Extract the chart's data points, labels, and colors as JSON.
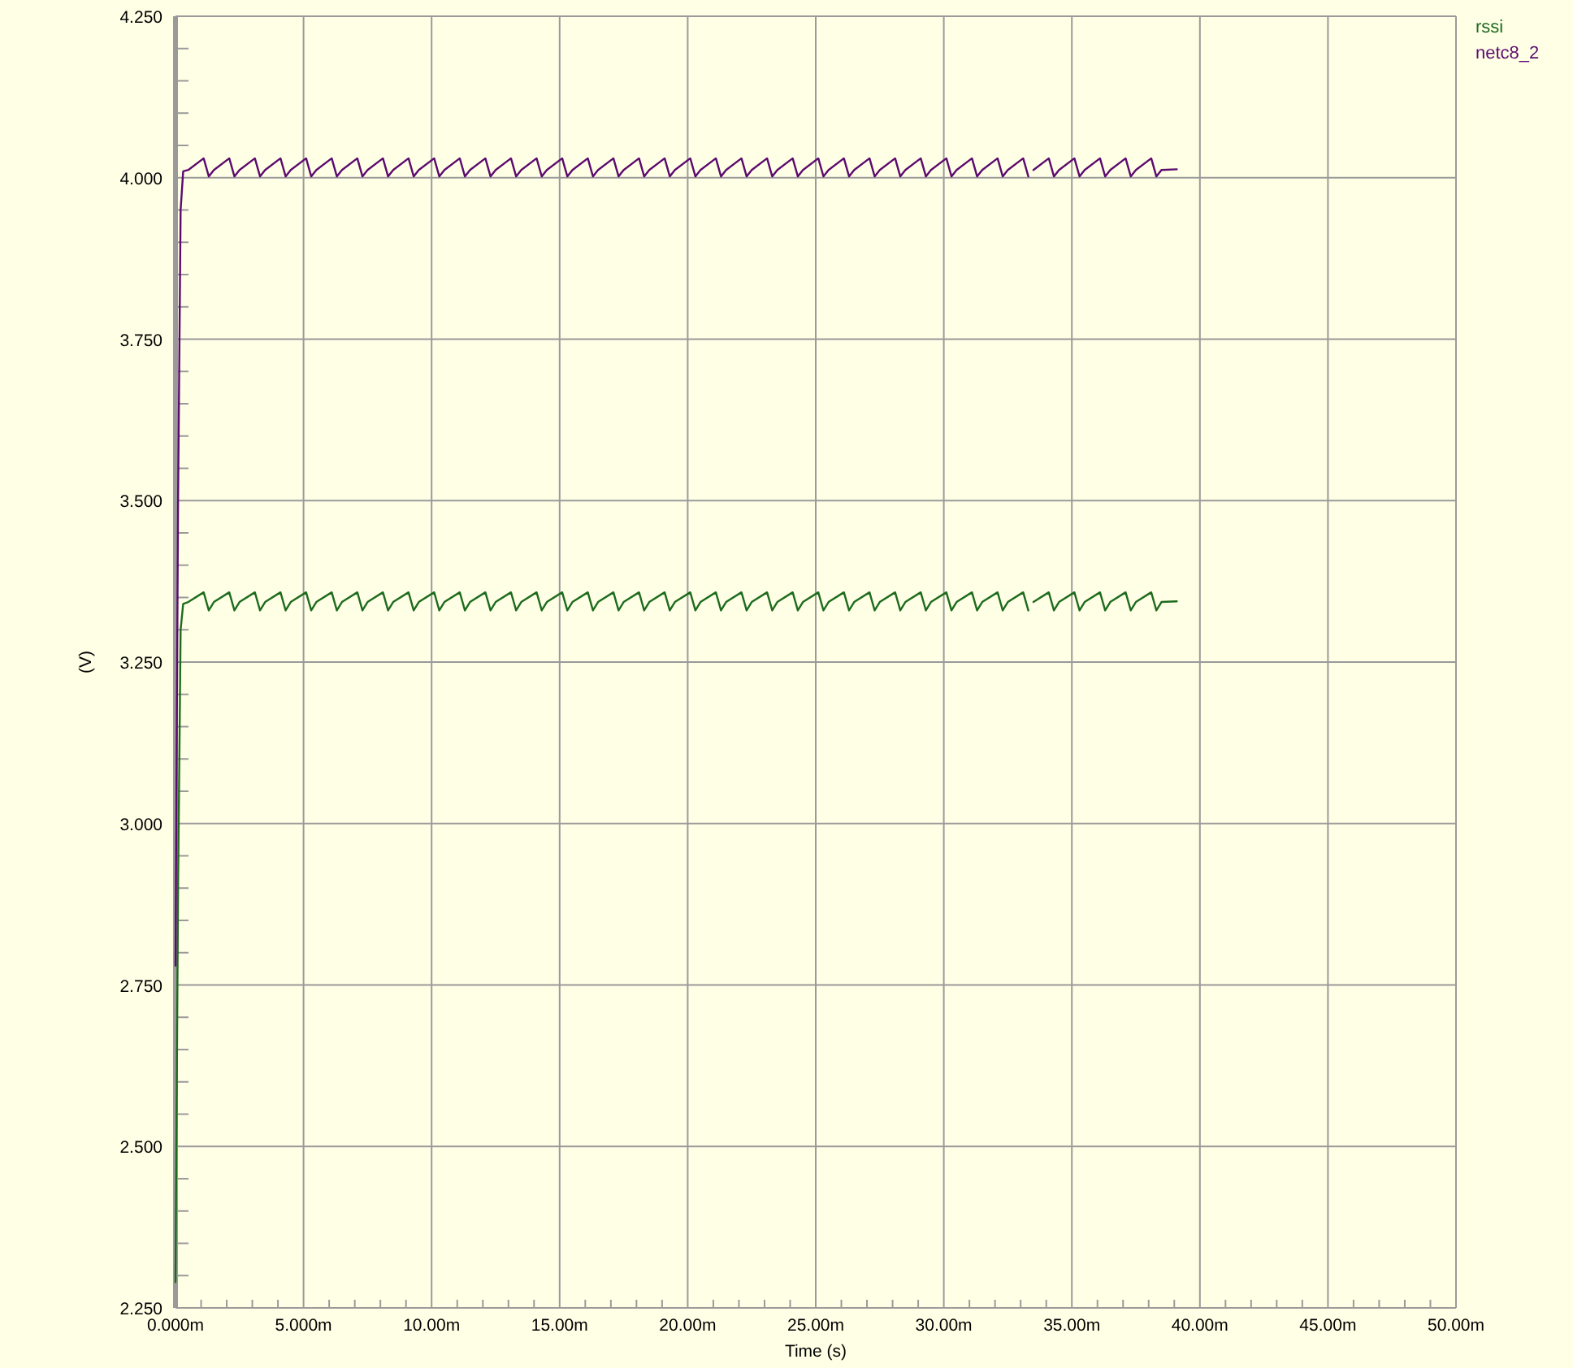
{
  "chart_data": {
    "type": "line",
    "xlabel": "Time (s)",
    "ylabel": "(V)",
    "legend": "top right",
    "grid": true,
    "xlim": [
      0,
      50
    ],
    "ylim": [
      2.25,
      4.25
    ],
    "xticks": [
      {
        "value": 0,
        "label": "0.000m"
      },
      {
        "value": 1,
        "label": null
      },
      {
        "value": 2,
        "label": null
      },
      {
        "value": 3,
        "label": null
      },
      {
        "value": 4,
        "label": null
      },
      {
        "value": 5,
        "label": "5.000m"
      },
      {
        "value": 6,
        "label": null
      },
      {
        "value": 7,
        "label": null
      },
      {
        "value": 8,
        "label": null
      },
      {
        "value": 9,
        "label": null
      },
      {
        "value": 10,
        "label": "10.00m"
      },
      {
        "value": 11,
        "label": null
      },
      {
        "value": 12,
        "label": null
      },
      {
        "value": 13,
        "label": null
      },
      {
        "value": 14,
        "label": null
      },
      {
        "value": 15,
        "label": "15.00m"
      },
      {
        "value": 16,
        "label": null
      },
      {
        "value": 17,
        "label": null
      },
      {
        "value": 18,
        "label": null
      },
      {
        "value": 19,
        "label": null
      },
      {
        "value": 20,
        "label": "20.00m"
      },
      {
        "value": 21,
        "label": null
      },
      {
        "value": 22,
        "label": null
      },
      {
        "value": 23,
        "label": null
      },
      {
        "value": 24,
        "label": null
      },
      {
        "value": 25,
        "label": "25.00m"
      },
      {
        "value": 26,
        "label": null
      },
      {
        "value": 27,
        "label": null
      },
      {
        "value": 28,
        "label": null
      },
      {
        "value": 29,
        "label": null
      },
      {
        "value": 30,
        "label": "30.00m"
      },
      {
        "value": 31,
        "label": null
      },
      {
        "value": 32,
        "label": null
      },
      {
        "value": 33,
        "label": null
      },
      {
        "value": 34,
        "label": null
      },
      {
        "value": 35,
        "label": "35.00m"
      },
      {
        "value": 36,
        "label": null
      },
      {
        "value": 37,
        "label": null
      },
      {
        "value": 38,
        "label": null
      },
      {
        "value": 39,
        "label": null
      },
      {
        "value": 40,
        "label": "40.00m"
      },
      {
        "value": 41,
        "label": null
      },
      {
        "value": 42,
        "label": null
      },
      {
        "value": 43,
        "label": null
      },
      {
        "value": 44,
        "label": null
      },
      {
        "value": 45,
        "label": "45.00m"
      },
      {
        "value": 46,
        "label": null
      },
      {
        "value": 47,
        "label": null
      },
      {
        "value": 48,
        "label": null
      },
      {
        "value": 49,
        "label": null
      },
      {
        "value": 50,
        "label": "50.00m"
      }
    ],
    "yticks": [
      {
        "value": 2.25,
        "label": "2.250"
      },
      {
        "value": 2.3,
        "label": null
      },
      {
        "value": 2.35,
        "label": null
      },
      {
        "value": 2.4,
        "label": null
      },
      {
        "value": 2.45,
        "label": null
      },
      {
        "value": 2.5,
        "label": "2.500"
      },
      {
        "value": 2.55,
        "label": null
      },
      {
        "value": 2.6,
        "label": null
      },
      {
        "value": 2.65,
        "label": null
      },
      {
        "value": 2.7,
        "label": null
      },
      {
        "value": 2.75,
        "label": "2.750"
      },
      {
        "value": 2.8,
        "label": null
      },
      {
        "value": 2.85,
        "label": null
      },
      {
        "value": 2.9,
        "label": null
      },
      {
        "value": 2.95,
        "label": null
      },
      {
        "value": 3,
        "label": "3.000"
      },
      {
        "value": 3.05,
        "label": null
      },
      {
        "value": 3.1,
        "label": null
      },
      {
        "value": 3.15,
        "label": null
      },
      {
        "value": 3.2,
        "label": null
      },
      {
        "value": 3.25,
        "label": "3.250"
      },
      {
        "value": 3.3,
        "label": null
      },
      {
        "value": 3.35,
        "label": null
      },
      {
        "value": 3.4,
        "label": null
      },
      {
        "value": 3.45,
        "label": null
      },
      {
        "value": 3.5,
        "label": "3.500"
      },
      {
        "value": 3.55,
        "label": null
      },
      {
        "value": 3.6,
        "label": null
      },
      {
        "value": 3.65,
        "label": null
      },
      {
        "value": 3.7,
        "label": null
      },
      {
        "value": 3.75,
        "label": "3.750"
      },
      {
        "value": 3.8,
        "label": null
      },
      {
        "value": 3.85,
        "label": null
      },
      {
        "value": 3.9,
        "label": null
      },
      {
        "value": 3.95,
        "label": null
      },
      {
        "value": 4,
        "label": "4.000"
      },
      {
        "value": 4.05,
        "label": null
      },
      {
        "value": 4.1,
        "label": null
      },
      {
        "value": 4.15,
        "label": null
      },
      {
        "value": 4.2,
        "label": null
      },
      {
        "value": 4.25,
        "label": "4.250"
      }
    ],
    "x": [
      0,
      0.1,
      0.2,
      0.3,
      0.5,
      1.1,
      1.3,
      1.5,
      2.1,
      2.3,
      2.5,
      3.1,
      3.3,
      3.5,
      4.1,
      4.3,
      4.5,
      5.1,
      5.3,
      5.5,
      6.1,
      6.3,
      6.5,
      7.1,
      7.3,
      7.5,
      8.1,
      8.3,
      8.5,
      9.1,
      9.3,
      9.5,
      10.1,
      10.3,
      10.5,
      11.1,
      11.3,
      11.5,
      12.1,
      12.3,
      12.5,
      13.1,
      13.3,
      13.5,
      14.1,
      14.3,
      14.5,
      15.1,
      15.3,
      15.5,
      16.1,
      16.3,
      16.5,
      17.1,
      17.3,
      17.5,
      18.1,
      18.3,
      18.5,
      19.1,
      19.3,
      19.5,
      20.1,
      20.3,
      20.5,
      21.1,
      21.3,
      21.5,
      22.1,
      22.3,
      22.5,
      23.1,
      23.3,
      23.5,
      24.1,
      24.3,
      24.5,
      25.1,
      25.3,
      25.5,
      26.1,
      26.3,
      26.5,
      27.1,
      27.3,
      27.5,
      28.1,
      28.3,
      28.5,
      29.1,
      29.3,
      29.5,
      30.1,
      30.3,
      30.5,
      31.1,
      31.3,
      31.5,
      32.1,
      32.3,
      32.5,
      33.1,
      33.3,
      33.4,
      33.5,
      34.1,
      34.3,
      34.5,
      35.1,
      35.3,
      35.5,
      36.1,
      36.3,
      36.5,
      37.1,
      37.3,
      37.5,
      38.1,
      38.3,
      38.5,
      39.1
    ],
    "series": [
      {
        "name": "rssi",
        "color": "#1e6b1e",
        "values": [
          2.29,
          2.9,
          3.3,
          3.34,
          3.343,
          3.358,
          3.33,
          3.343,
          3.358,
          3.33,
          3.343,
          3.358,
          3.33,
          3.343,
          3.358,
          3.33,
          3.343,
          3.358,
          3.33,
          3.343,
          3.358,
          3.33,
          3.343,
          3.358,
          3.33,
          3.343,
          3.358,
          3.33,
          3.343,
          3.358,
          3.33,
          3.343,
          3.358,
          3.33,
          3.343,
          3.358,
          3.33,
          3.343,
          3.358,
          3.33,
          3.343,
          3.358,
          3.33,
          3.343,
          3.358,
          3.33,
          3.343,
          3.358,
          3.33,
          3.343,
          3.358,
          3.33,
          3.343,
          3.358,
          3.33,
          3.343,
          3.358,
          3.33,
          3.343,
          3.358,
          3.33,
          3.343,
          3.358,
          3.33,
          3.343,
          3.358,
          3.33,
          3.343,
          3.358,
          3.33,
          3.343,
          3.358,
          3.33,
          3.343,
          3.358,
          3.33,
          3.343,
          3.358,
          3.33,
          3.343,
          3.358,
          3.33,
          3.343,
          3.358,
          3.33,
          3.343,
          3.358,
          3.33,
          3.343,
          3.358,
          3.33,
          3.343,
          3.358,
          3.33,
          3.343,
          3.358,
          3.33,
          3.343,
          3.358,
          3.33,
          3.343,
          3.358,
          3.33,
          null,
          3.343,
          3.358,
          3.33,
          3.343,
          3.358,
          3.33,
          3.343,
          3.358,
          3.33,
          3.343,
          3.358,
          3.33,
          3.343,
          3.358,
          3.33,
          3.343,
          3.344
        ]
      },
      {
        "name": "netc8_2",
        "color": "#5c0a6e",
        "values": [
          2.78,
          3.5,
          3.95,
          4.01,
          4.012,
          4.03,
          4.002,
          4.012,
          4.03,
          4.002,
          4.012,
          4.03,
          4.002,
          4.012,
          4.03,
          4.002,
          4.012,
          4.03,
          4.002,
          4.012,
          4.03,
          4.002,
          4.012,
          4.03,
          4.002,
          4.012,
          4.03,
          4.002,
          4.012,
          4.03,
          4.002,
          4.012,
          4.03,
          4.002,
          4.012,
          4.03,
          4.002,
          4.012,
          4.03,
          4.002,
          4.012,
          4.03,
          4.002,
          4.012,
          4.03,
          4.002,
          4.012,
          4.03,
          4.002,
          4.012,
          4.03,
          4.002,
          4.012,
          4.03,
          4.002,
          4.012,
          4.03,
          4.002,
          4.012,
          4.03,
          4.002,
          4.012,
          4.03,
          4.002,
          4.012,
          4.03,
          4.002,
          4.012,
          4.03,
          4.002,
          4.012,
          4.03,
          4.002,
          4.012,
          4.03,
          4.002,
          4.012,
          4.03,
          4.002,
          4.012,
          4.03,
          4.002,
          4.012,
          4.03,
          4.002,
          4.012,
          4.03,
          4.002,
          4.012,
          4.03,
          4.002,
          4.012,
          4.03,
          4.002,
          4.012,
          4.03,
          4.002,
          4.012,
          4.03,
          4.002,
          4.012,
          4.03,
          4.002,
          null,
          4.012,
          4.03,
          4.002,
          4.012,
          4.03,
          4.002,
          4.012,
          4.03,
          4.002,
          4.012,
          4.03,
          4.002,
          4.012,
          4.03,
          4.002,
          4.012,
          4.013
        ]
      }
    ]
  }
}
